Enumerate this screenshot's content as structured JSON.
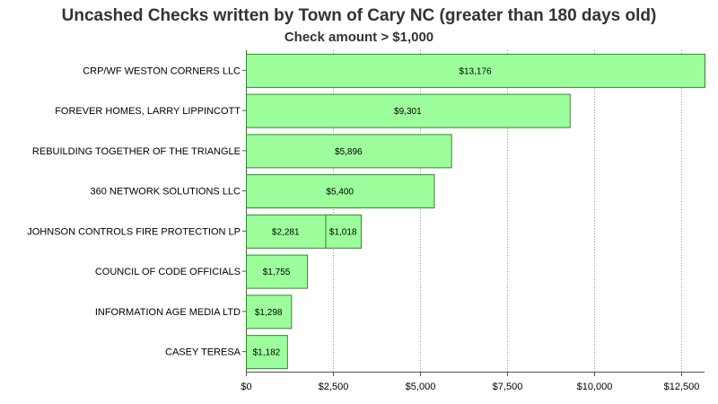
{
  "chart_data": {
    "type": "bar",
    "orientation": "horizontal",
    "stacked": true,
    "title": "Uncashed Checks written by Town of Cary NC (greater than 180 days old)",
    "subtitle": "Check amount  > $1,000",
    "xlabel": "",
    "ylabel": "",
    "xlim": [
      0,
      13176
    ],
    "grid": "vertical dotted",
    "bar_color": "#9cff9c",
    "bar_edge_color": "#2f8a2f",
    "x_ticks": [
      {
        "value": 0,
        "label": "$0"
      },
      {
        "value": 2500,
        "label": "$2,500"
      },
      {
        "value": 5000,
        "label": "$5,000"
      },
      {
        "value": 7500,
        "label": "$7,500"
      },
      {
        "value": 10000,
        "label": "$10,000"
      },
      {
        "value": 12500,
        "label": "$12,500"
      }
    ],
    "bars": [
      {
        "category": "CRP/WF WESTON CORNERS LLC",
        "segments": [
          {
            "value": 13176,
            "label": "$13,176"
          }
        ]
      },
      {
        "category": "FOREVER HOMES, LARRY LIPPINCOTT",
        "segments": [
          {
            "value": 9301,
            "label": "$9,301"
          }
        ]
      },
      {
        "category": "REBUILDING TOGETHER OF THE TRIANGLE",
        "segments": [
          {
            "value": 5896,
            "label": "$5,896"
          }
        ]
      },
      {
        "category": "360 NETWORK SOLUTIONS LLC",
        "segments": [
          {
            "value": 5400,
            "label": "$5,400"
          }
        ]
      },
      {
        "category": "JOHNSON CONTROLS FIRE PROTECTION LP",
        "segments": [
          {
            "value": 2281,
            "label": "$2,281"
          },
          {
            "value": 1018,
            "label": "$1,018"
          }
        ]
      },
      {
        "category": "COUNCIL OF CODE OFFICIALS",
        "segments": [
          {
            "value": 1755,
            "label": "$1,755"
          }
        ]
      },
      {
        "category": "INFORMATION AGE MEDIA LTD",
        "segments": [
          {
            "value": 1298,
            "label": "$1,298"
          }
        ]
      },
      {
        "category": "CASEY TERESA",
        "segments": [
          {
            "value": 1182,
            "label": "$1,182"
          }
        ]
      }
    ]
  }
}
